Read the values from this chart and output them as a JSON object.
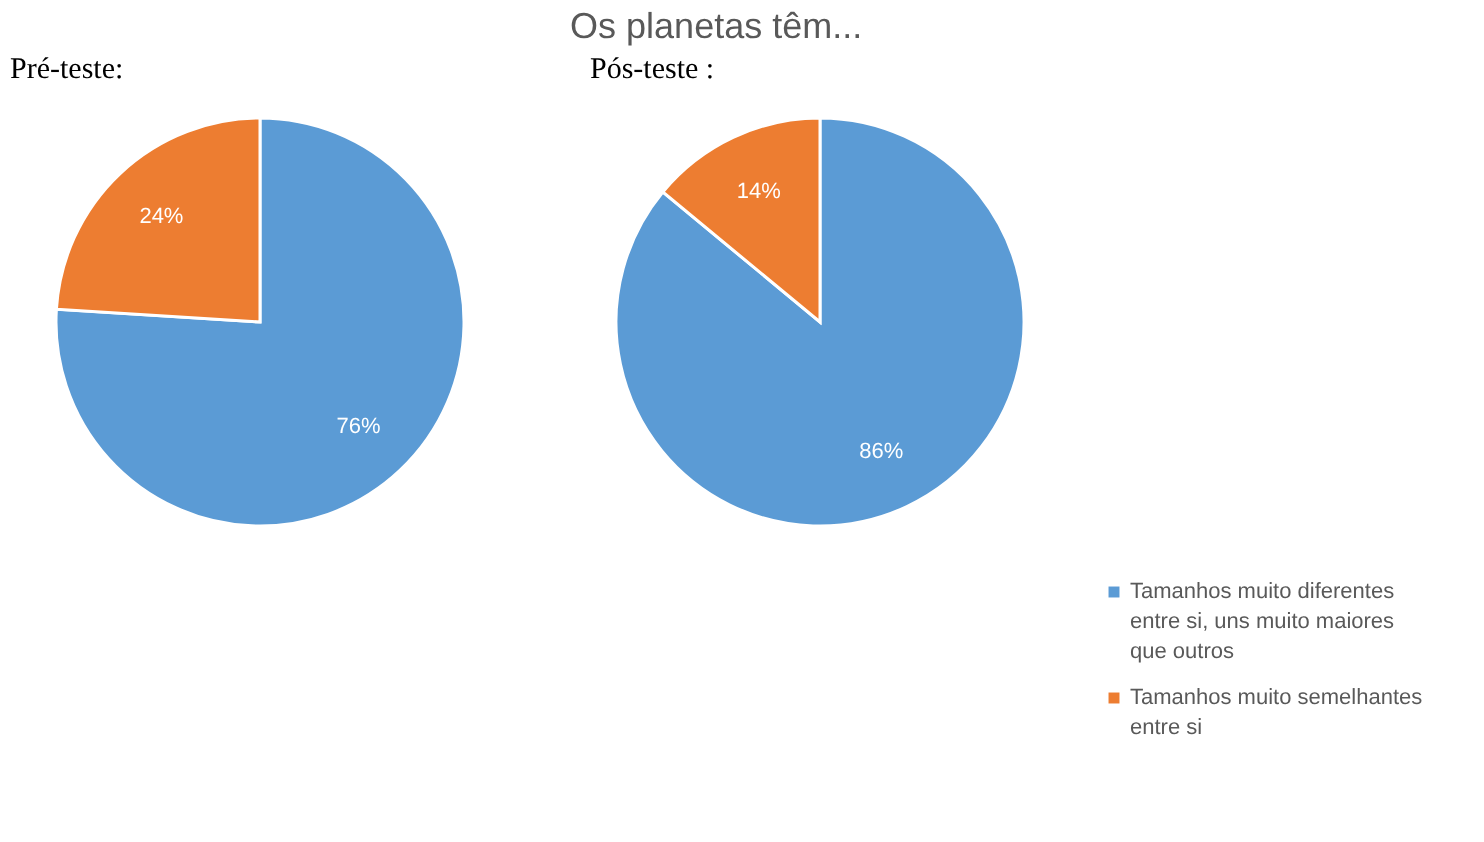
{
  "chart_data": [
    {
      "type": "pie",
      "subtitle": "Pré-teste:",
      "categories": [
        null,
        null
      ],
      "values": [
        76,
        24
      ],
      "colors": [
        "#5b9bd5",
        "#ed7d31"
      ],
      "value_labels": [
        "76%",
        "24%"
      ]
    },
    {
      "type": "pie",
      "title": "Os planetas têm...",
      "subtitle": "Pós-teste :",
      "categories": [
        "Tamanhos muito diferentes entre si, uns muito maiores que outros",
        "Tamanhos muito semelhantes entre si"
      ],
      "values": [
        86,
        14
      ],
      "colors": [
        "#5b9bd5",
        "#ed7d31"
      ],
      "value_labels": [
        "86%",
        "14%"
      ],
      "legend": "bottom right"
    }
  ]
}
